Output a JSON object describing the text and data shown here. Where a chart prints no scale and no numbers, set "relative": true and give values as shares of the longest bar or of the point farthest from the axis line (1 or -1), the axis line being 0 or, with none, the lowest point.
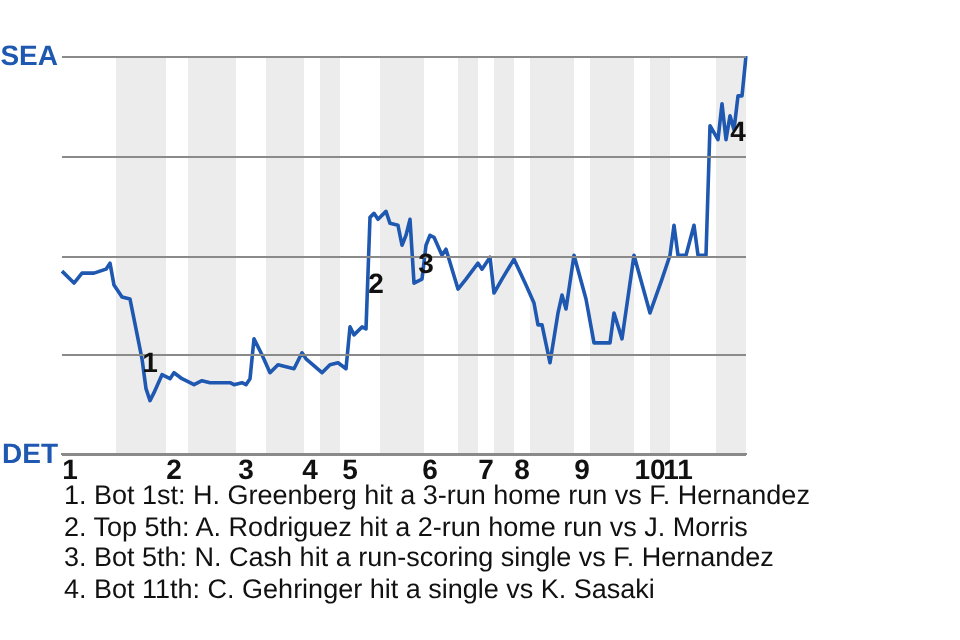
{
  "chart_data": {
    "type": "line",
    "relative": true,
    "legend": false,
    "marker": "none",
    "line_style": "solid",
    "categories": [
      null,
      null,
      "1",
      null,
      null,
      null,
      null,
      null,
      null,
      null,
      null,
      null,
      null,
      null,
      null,
      null,
      null,
      null,
      null,
      null,
      null,
      null,
      null,
      null,
      null,
      null,
      null,
      null,
      "2",
      null,
      null,
      null,
      null,
      null,
      null,
      null,
      null,
      null,
      null,
      null,
      null,
      null,
      null,
      null,
      null,
      null,
      "3",
      null,
      null,
      null,
      null,
      null,
      null,
      null,
      null,
      null,
      null,
      null,
      null,
      null,
      null,
      null,
      "4",
      null,
      null,
      null,
      null,
      null,
      null,
      null,
      null,
      null,
      "5",
      null,
      null,
      null,
      null,
      null,
      null,
      null,
      null,
      null,
      null,
      null,
      null,
      null,
      null,
      null,
      null,
      null,
      null,
      null,
      "6",
      null,
      null,
      null,
      null,
      null,
      null,
      null,
      null,
      null,
      null,
      null,
      null,
      null,
      "7",
      null,
      null,
      null,
      null,
      null,
      null,
      null,
      null,
      "8",
      null,
      null,
      null,
      null,
      null,
      null,
      null,
      null,
      null,
      null,
      null,
      null,
      null,
      null,
      "9",
      null,
      null,
      null,
      null,
      null,
      null,
      null,
      null,
      null,
      null,
      null,
      null,
      null,
      null,
      null,
      null,
      "10",
      null,
      null,
      null,
      null,
      null,
      null,
      "11",
      null,
      null,
      null,
      null,
      null,
      null,
      null,
      null,
      null,
      null,
      null,
      null,
      null,
      null,
      null,
      null,
      null
    ],
    "ref_lines": [
      {
        "axis": "y",
        "value": 1,
        "label": "SEA",
        "color": "#8a8a8a"
      },
      {
        "axis": "y",
        "value": 0.75,
        "color": "#8a8a8a"
      },
      {
        "axis": "y",
        "value": 0.5,
        "color": "#8a8a8a"
      },
      {
        "axis": "y",
        "value": 0.25,
        "color": "#8a8a8a"
      },
      {
        "axis": "y",
        "value": 0,
        "label": "DET",
        "color": "#8a8a8a"
      }
    ],
    "series": [
      {
        "color": "#1f58b0",
        "values": [
          0.46,
          null,
          null,
          0.43,
          null,
          0.455,
          null,
          null,
          0.455,
          null,
          null,
          0.465,
          0.48,
          0.425,
          null,
          0.395,
          null,
          0.39,
          0.34,
          0.29,
          0.24,
          0.165,
          0.135,
          0.155,
          null,
          0.2,
          null,
          0.19,
          0.205,
          null,
          0.19,
          null,
          0.18,
          0.175,
          null,
          0.185,
          null,
          0.18,
          null,
          0.18,
          null,
          null,
          0.18,
          0.175,
          null,
          0.18,
          0.175,
          0.19,
          0.29,
          null,
          0.25,
          null,
          0.205,
          null,
          0.225,
          null,
          0.22,
          null,
          0.215,
          null,
          0.255,
          0.24,
          null,
          null,
          null,
          0.205,
          null,
          0.225,
          null,
          0.23,
          null,
          0.215,
          0.32,
          0.3,
          null,
          0.32,
          0.315,
          0.595,
          0.605,
          0.59,
          null,
          0.61,
          0.58,
          null,
          0.575,
          0.525,
          0.55,
          0.59,
          0.43,
          null,
          0.44,
          0.525,
          0.55,
          0.545,
          null,
          0.5,
          0.515,
          null,
          null,
          0.415,
          null,
          0.44,
          null,
          null,
          0.48,
          0.465,
          null,
          0.495,
          0.405,
          null,
          0.44,
          null,
          null,
          0.49,
          null,
          null,
          0.425,
          null,
          0.38,
          0.325,
          0.325,
          null,
          0.23,
          null,
          0.355,
          0.4,
          0.365,
          null,
          0.5,
          null,
          null,
          0.39,
          null,
          0.28,
          null,
          null,
          null,
          0.28,
          0.355,
          null,
          0.29,
          null,
          null,
          0.5,
          null,
          null,
          null,
          0.355,
          null,
          null,
          0.44,
          null,
          0.5,
          0.575,
          0.5,
          null,
          0.5,
          null,
          0.575,
          0.5,
          null,
          0.5,
          0.825,
          null,
          0.79,
          0.88,
          0.79,
          0.85,
          0.815,
          0.9,
          0.9,
          1.0
        ]
      }
    ],
    "annotations": [
      "1",
      "2",
      "3",
      "4",
      "1. Bot 1st: H. Greenberg hit a 3-run home run vs F. Hernandez",
      "2. Top 5th: A. Rodriguez hit a 2-run home run vs J. Morris",
      "3. Bot 5th: N. Cash hit a run-scoring single vs F. Hernandez",
      "4. Bot 11th: C. Gehringer hit a single vs K. Sasaki"
    ]
  }
}
